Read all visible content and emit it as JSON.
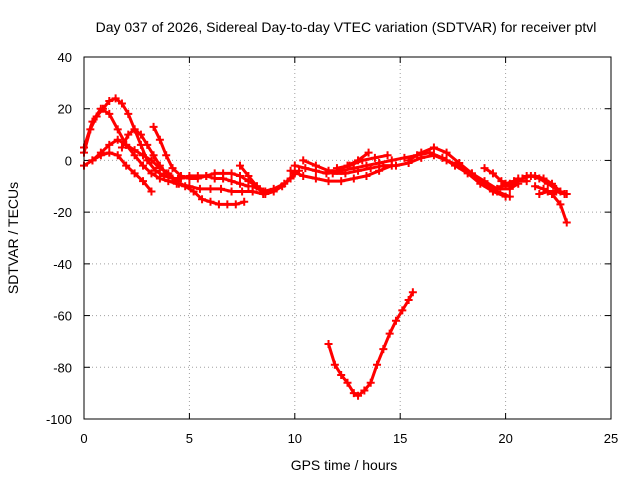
{
  "chart_data": {
    "type": "scatter",
    "title": "Day 037 of 2026, Sidereal Day-to-day VTEC variation (SDTVAR) for receiver ptvl",
    "xlabel": "GPS time / hours",
    "ylabel": "SDTVAR / TECUs",
    "xlim": [
      0,
      25
    ],
    "ylim": [
      -100,
      40
    ],
    "xticks": [
      0,
      5,
      10,
      15,
      20,
      25
    ],
    "yticks": [
      -100,
      -80,
      -60,
      -40,
      -20,
      0,
      20,
      40
    ],
    "grid": true,
    "color": "#ff0000",
    "series": [
      {
        "name": "arc-1",
        "x": [
          0.0,
          0.3,
          0.6,
          0.9,
          1.2,
          1.5,
          1.8,
          2.1,
          2.4,
          2.7,
          3.0,
          3.4,
          3.8,
          4.2,
          4.6,
          5.0,
          5.4,
          5.8,
          6.2,
          6.6,
          7.0,
          7.4,
          7.8
        ],
        "y": [
          3,
          12,
          17,
          20,
          23,
          24,
          22,
          18,
          12,
          6,
          0,
          -4,
          -6,
          -7,
          -7,
          -6,
          -6,
          -6,
          -7,
          -7,
          -8,
          -9,
          -10
        ]
      },
      {
        "name": "arc-2",
        "x": [
          0.0,
          0.4,
          0.8,
          1.2,
          1.6,
          2.0,
          2.4,
          2.8,
          3.2,
          3.6,
          4.0,
          4.4,
          4.8,
          5.2,
          5.6,
          6.0,
          6.4,
          6.8,
          7.2,
          7.6
        ],
        "y": [
          5,
          15,
          20,
          18,
          12,
          6,
          2,
          -2,
          -5,
          -7,
          -8,
          -9,
          -10,
          -12,
          -15,
          -16,
          -17,
          -17,
          -17,
          -16
        ]
      },
      {
        "name": "arc-3",
        "x": [
          0.0,
          0.4,
          0.8,
          1.2,
          1.6,
          2.0,
          2.4,
          2.8,
          3.2
        ],
        "y": [
          -2,
          0,
          2,
          3,
          2,
          -2,
          -5,
          -8,
          -12
        ]
      },
      {
        "name": "arc-4",
        "x": [
          0.4,
          0.8,
          1.2,
          1.6,
          2.0,
          2.4,
          2.8,
          3.2,
          3.6,
          4.0,
          4.4
        ],
        "y": [
          0,
          3,
          6,
          8,
          6,
          4,
          2,
          0,
          -3,
          -5,
          -8
        ]
      },
      {
        "name": "arc-5",
        "x": [
          1.8,
          2.1,
          2.4,
          2.7,
          3.0,
          3.3,
          3.6,
          3.9,
          4.2
        ],
        "y": [
          5,
          10,
          12,
          10,
          6,
          2,
          -2,
          -5,
          -7
        ]
      },
      {
        "name": "arc-6",
        "x": [
          3.3,
          3.6,
          3.9,
          4.2,
          4.6,
          5.0,
          5.4,
          5.8,
          6.2,
          6.6,
          7.0,
          7.4,
          7.8,
          8.2,
          8.6
        ],
        "y": [
          13,
          8,
          2,
          -3,
          -6,
          -7,
          -7,
          -6,
          -5,
          -5,
          -5,
          -6,
          -8,
          -10,
          -12
        ]
      },
      {
        "name": "arc-7",
        "x": [
          4.5,
          5.0,
          5.5,
          6.0,
          6.5,
          7.0,
          7.5,
          8.0,
          8.5
        ],
        "y": [
          -9,
          -10,
          -11,
          -11,
          -11,
          -12,
          -12,
          -12,
          -13
        ]
      },
      {
        "name": "arc-8",
        "x": [
          7.4,
          7.8,
          8.2,
          8.6,
          9.0,
          9.4,
          9.8,
          10.2
        ],
        "y": [
          -2,
          -6,
          -10,
          -13,
          -12,
          -10,
          -7,
          -4
        ]
      },
      {
        "name": "arc-9",
        "x": [
          8.0,
          8.5,
          9.0,
          9.5,
          10.0
        ],
        "y": [
          -10,
          -12,
          -11,
          -9,
          -5
        ]
      },
      {
        "name": "arc-10",
        "x": [
          9.8,
          10.4,
          11.0,
          11.6,
          12.2,
          12.8,
          13.4,
          14.0,
          14.6
        ],
        "y": [
          -4,
          -6,
          -7,
          -8,
          -8,
          -7,
          -6,
          -4,
          -2
        ]
      },
      {
        "name": "arc-11",
        "x": [
          10.4,
          11.0,
          11.6,
          12.2,
          12.8,
          13.4,
          14.0,
          14.6,
          15.2,
          15.8,
          16.4,
          17.0,
          17.6,
          18.2,
          18.8,
          19.4,
          20.0
        ],
        "y": [
          0,
          -2,
          -4,
          -4,
          -3,
          -2,
          -1,
          0,
          1,
          2,
          3,
          1,
          -2,
          -5,
          -9,
          -12,
          -14
        ]
      },
      {
        "name": "arc-12",
        "x": [
          10.0,
          10.5,
          11.0,
          11.5,
          12.0,
          12.5,
          13.0,
          13.5
        ],
        "y": [
          -2,
          -3,
          -4,
          -5,
          -4,
          -2,
          0,
          3
        ]
      },
      {
        "name": "arc-13",
        "x": [
          11.8,
          12.4,
          13.0,
          13.6,
          14.2,
          14.8,
          15.4,
          16.0,
          16.6,
          17.2,
          17.8,
          18.4,
          19.0,
          19.6,
          20.2,
          20.6
        ],
        "y": [
          -5,
          -5,
          -4,
          -3,
          -2,
          -2,
          -1,
          1,
          2,
          0,
          -2,
          -5,
          -8,
          -11,
          -11,
          -9
        ]
      },
      {
        "name": "arc-14",
        "x": [
          12.0,
          12.6,
          13.2,
          13.8,
          14.4
        ],
        "y": [
          -3,
          -2,
          0,
          1,
          2
        ]
      },
      {
        "name": "arc-15",
        "x": [
          15.4,
          16.0,
          16.6,
          17.2,
          17.8,
          18.4,
          19.0,
          19.6,
          20.2
        ],
        "y": [
          0,
          3,
          5,
          3,
          -1,
          -5,
          -9,
          -12,
          -14
        ]
      },
      {
        "name": "arc-16",
        "x": [
          19.0,
          19.4,
          19.8,
          20.2,
          20.6
        ],
        "y": [
          -3,
          -5,
          -8,
          -10,
          -7
        ]
      },
      {
        "name": "arc-17",
        "x": [
          19.4,
          19.8,
          20.2,
          20.6,
          21.0
        ],
        "y": [
          -12,
          -10,
          -9,
          -8,
          -8
        ]
      },
      {
        "name": "arc-18",
        "x": [
          20.0,
          20.4,
          20.8,
          21.2,
          21.6,
          22.0,
          22.4,
          22.8
        ],
        "y": [
          -9,
          -8,
          -7,
          -6,
          -7,
          -9,
          -11,
          -13
        ]
      },
      {
        "name": "arc-19",
        "x": [
          21.0,
          21.4,
          21.8,
          22.2,
          22.6,
          22.9
        ],
        "y": [
          -6,
          -6,
          -7,
          -9,
          -12,
          -13
        ]
      },
      {
        "name": "arc-20",
        "x": [
          21.4,
          21.8,
          22.2,
          22.6,
          22.9
        ],
        "y": [
          -10,
          -11,
          -13,
          -17,
          -24
        ]
      },
      {
        "name": "arc-21",
        "x": [
          21.6,
          22.0,
          22.4,
          22.8
        ],
        "y": [
          -13,
          -12,
          -12,
          -13
        ]
      },
      {
        "name": "arc-22",
        "x": [
          11.6,
          11.9,
          12.2,
          12.5,
          12.8,
          13.0,
          13.3,
          13.6,
          13.9,
          14.2,
          14.5,
          14.8,
          15.1,
          15.4,
          15.6
        ],
        "y": [
          -71,
          -79,
          -83,
          -86,
          -90,
          -91,
          -89,
          -86,
          -79,
          -73,
          -67,
          -62,
          -58,
          -54,
          -51
        ]
      }
    ]
  }
}
